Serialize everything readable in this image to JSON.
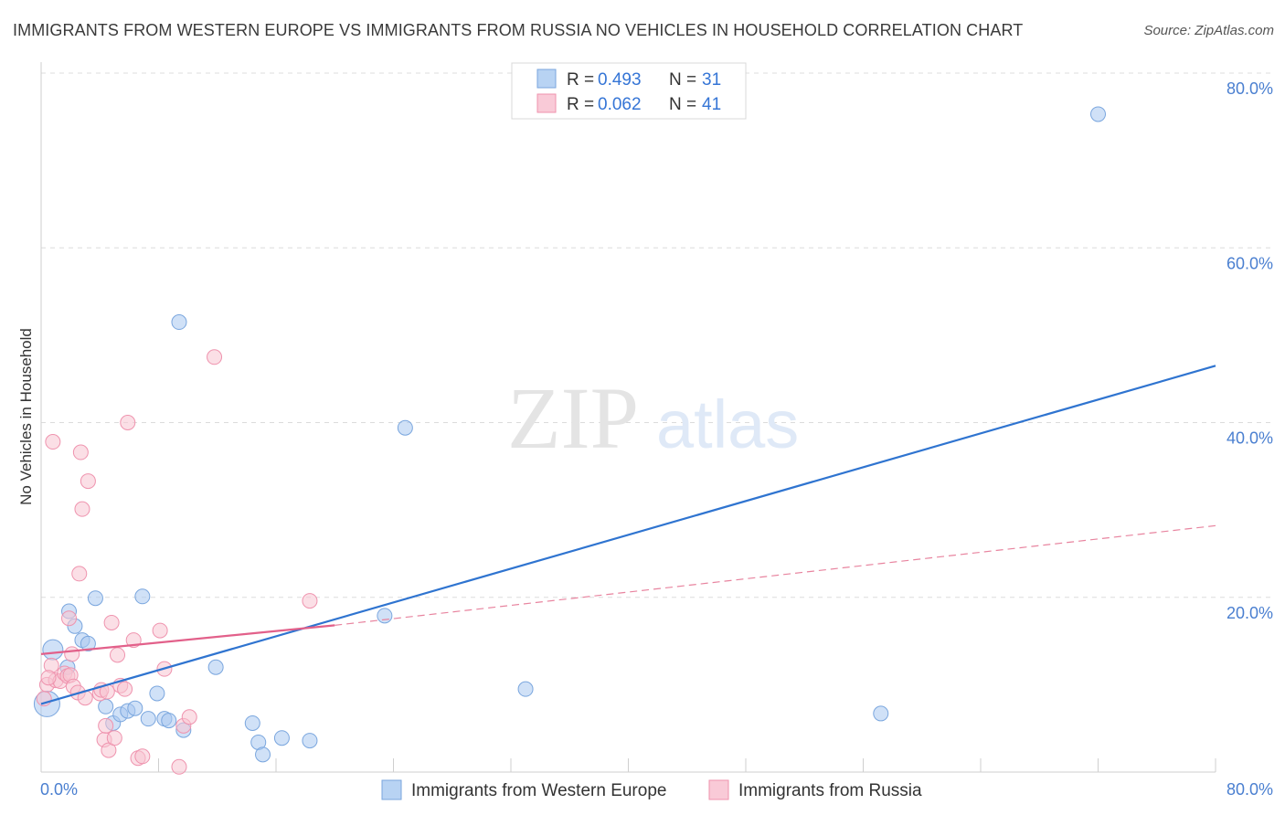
{
  "title": "IMMIGRANTS FROM WESTERN EUROPE VS IMMIGRANTS FROM RUSSIA NO VEHICLES IN HOUSEHOLD CORRELATION CHART",
  "source": "Source: ZipAtlas.com",
  "watermark": {
    "zip": "ZIP",
    "atlas": "atlas"
  },
  "chart_data": {
    "type": "scatter",
    "ylabel": "No Vehicles in Household",
    "xlim": [
      0,
      80
    ],
    "ylim": [
      0,
      80
    ],
    "x_tick_labels": {
      "left": "0.0%",
      "right": "80.0%"
    },
    "y_ticks": [
      {
        "value": 20,
        "label": "20.0%"
      },
      {
        "value": 40,
        "label": "40.0%"
      },
      {
        "value": 60,
        "label": "60.0%"
      },
      {
        "value": 80,
        "label": "80.0%"
      }
    ],
    "legend": {
      "r_label": "R =",
      "n_label": "N =",
      "entries": [
        {
          "r": "0.493",
          "n": "31"
        },
        {
          "r": "0.062",
          "n": "41"
        }
      ]
    },
    "series": [
      {
        "name": "Immigrants from Western Europe",
        "color": "#a9c8f0",
        "stroke": "#7aa6de",
        "trend": {
          "x1": 0,
          "y1": 7.8,
          "x2": 80,
          "y2": 46.5,
          "color": "#2f74d0",
          "dashed": false
        },
        "points": [
          [
            0.4,
            7.8
          ],
          [
            0.8,
            14.0
          ],
          [
            1.8,
            12.0
          ],
          [
            1.9,
            18.4
          ],
          [
            2.3,
            16.7
          ],
          [
            2.8,
            15.1
          ],
          [
            3.2,
            14.7
          ],
          [
            3.7,
            19.9
          ],
          [
            4.4,
            7.5
          ],
          [
            4.9,
            5.6
          ],
          [
            5.4,
            6.6
          ],
          [
            5.9,
            7.0
          ],
          [
            6.4,
            7.3
          ],
          [
            6.9,
            20.1
          ],
          [
            7.3,
            6.1
          ],
          [
            7.9,
            9.0
          ],
          [
            8.4,
            6.1
          ],
          [
            8.7,
            5.9
          ],
          [
            9.4,
            51.5
          ],
          [
            9.7,
            4.8
          ],
          [
            11.9,
            12.0
          ],
          [
            14.4,
            5.6
          ],
          [
            14.8,
            3.4
          ],
          [
            15.1,
            2.0
          ],
          [
            16.4,
            3.9
          ],
          [
            18.3,
            3.6
          ],
          [
            23.4,
            17.9
          ],
          [
            24.8,
            39.4
          ],
          [
            33.0,
            9.5
          ],
          [
            57.2,
            6.7
          ],
          [
            72.0,
            75.3
          ]
        ]
      },
      {
        "name": "Immigrants from Russia",
        "color": "#f8c4d2",
        "stroke": "#ef93ae",
        "trend": {
          "x1": 0,
          "y1": 13.5,
          "x2": 20,
          "y2": 16.8,
          "color": "#e2608a",
          "dashed": false
        },
        "trend_ext": {
          "x1": 20,
          "y1": 16.8,
          "x2": 80,
          "y2": 28.2,
          "color": "#e8849f",
          "dashed": true
        },
        "points": [
          [
            0.2,
            8.4
          ],
          [
            0.4,
            10.0
          ],
          [
            0.7,
            12.2
          ],
          [
            0.8,
            37.8
          ],
          [
            1.0,
            10.5
          ],
          [
            1.3,
            10.4
          ],
          [
            1.6,
            11.3
          ],
          [
            1.8,
            11.0
          ],
          [
            1.9,
            17.6
          ],
          [
            2.0,
            11.1
          ],
          [
            2.1,
            13.5
          ],
          [
            2.2,
            9.8
          ],
          [
            2.5,
            9.1
          ],
          [
            2.6,
            22.7
          ],
          [
            2.7,
            36.6
          ],
          [
            2.8,
            30.1
          ],
          [
            3.0,
            8.5
          ],
          [
            3.2,
            33.3
          ],
          [
            4.0,
            9.0
          ],
          [
            4.1,
            9.4
          ],
          [
            4.3,
            3.7
          ],
          [
            4.4,
            5.3
          ],
          [
            4.5,
            9.2
          ],
          [
            4.6,
            2.5
          ],
          [
            4.8,
            17.1
          ],
          [
            5.0,
            3.9
          ],
          [
            5.2,
            13.4
          ],
          [
            5.4,
            9.9
          ],
          [
            5.7,
            9.5
          ],
          [
            5.9,
            40.0
          ],
          [
            6.3,
            15.1
          ],
          [
            6.6,
            1.6
          ],
          [
            6.9,
            1.8
          ],
          [
            8.1,
            16.2
          ],
          [
            8.4,
            11.8
          ],
          [
            9.4,
            0.6
          ],
          [
            9.7,
            5.3
          ],
          [
            10.1,
            6.3
          ],
          [
            11.8,
            47.5
          ],
          [
            18.3,
            19.6
          ],
          [
            0.5,
            10.8
          ]
        ]
      }
    ]
  },
  "bottom_legend": [
    {
      "label": "Immigrants from Western Europe"
    },
    {
      "label": "Immigrants from Russia"
    }
  ]
}
